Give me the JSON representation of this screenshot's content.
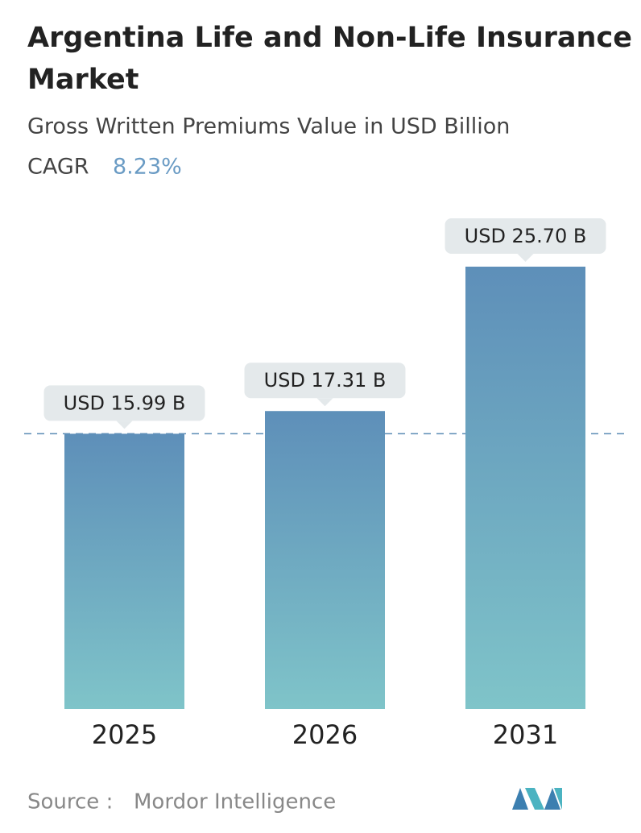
{
  "chart_data": {
    "type": "bar",
    "title": [
      "Argentina Life and Non-Life Insurance",
      "Market"
    ],
    "subtitle": "Gross Written Premiums Value in USD Billion",
    "cagr_label": "CAGR",
    "cagr": "8.23%",
    "categories": [
      "2025",
      "2026",
      "2031"
    ],
    "values": [
      15.99,
      17.31,
      25.7
    ],
    "value_labels": [
      "USD 15.99 B",
      "USD 17.31 B",
      "USD 25.70 B"
    ],
    "color": [
      "#5e8fb9",
      "#7fc4c9"
    ],
    "reference_line": true,
    "source_label": "Source :",
    "source": "Mordor Intelligence"
  }
}
